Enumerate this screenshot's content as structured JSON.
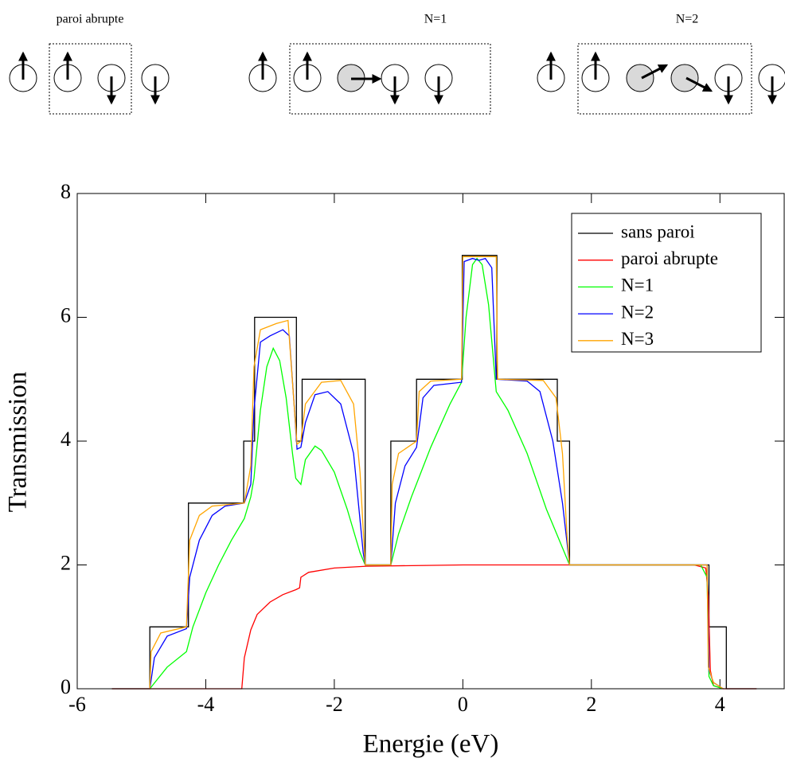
{
  "diagram": {
    "labels": [
      "paroi abrupte",
      "N=1",
      "N=2"
    ]
  },
  "chart_data": {
    "type": "line",
    "xlabel": "Energie (eV)",
    "ylabel": "Transmission",
    "xlim": [
      -6,
      5
    ],
    "ylim": [
      0,
      8
    ],
    "xticks": [
      -6,
      -4,
      -2,
      0,
      2,
      4
    ],
    "yticks": [
      0,
      2,
      4,
      6,
      8
    ],
    "legend": "upper right",
    "series": [
      {
        "name": "sans paroi",
        "color": "#000000",
        "x": [
          -5.46,
          -4.87,
          -4.87,
          -4.27,
          -4.27,
          -3.41,
          -3.41,
          -3.24,
          -3.24,
          -2.59,
          -2.59,
          -2.5,
          -2.5,
          -1.52,
          -1.52,
          -1.12,
          -1.12,
          -0.72,
          -0.72,
          -0.01,
          -0.01,
          0.53,
          0.53,
          1.47,
          1.47,
          1.66,
          1.66,
          3.83,
          3.83,
          4.1,
          4.1,
          4.57
        ],
        "values": [
          0,
          0,
          1,
          1,
          3,
          3,
          4,
          4,
          6,
          6,
          4,
          4,
          5,
          5,
          2,
          2,
          4,
          4,
          5,
          5,
          7,
          7,
          5,
          5,
          4,
          4,
          2,
          2,
          1,
          1,
          0,
          0
        ]
      },
      {
        "name": "paroi abrupte",
        "color": "#ff0000",
        "x": [
          -5.46,
          -3.44,
          -3.4,
          -3.3,
          -3.2,
          -3.0,
          -2.8,
          -2.6,
          -2.54,
          -2.52,
          -2.4,
          -2.0,
          -1.5,
          0,
          3.6,
          3.78,
          3.82,
          3.85,
          3.9,
          4.05,
          4.57
        ],
        "values": [
          0,
          0,
          0.5,
          0.95,
          1.2,
          1.4,
          1.52,
          1.6,
          1.63,
          1.8,
          1.88,
          1.95,
          1.98,
          2.0,
          2.0,
          1.95,
          1.5,
          0.3,
          0.05,
          0,
          0
        ]
      },
      {
        "name": "N=1",
        "color": "#00ff00",
        "x": [
          -4.87,
          -4.6,
          -4.3,
          -4.2,
          -4.0,
          -3.8,
          -3.6,
          -3.4,
          -3.3,
          -3.25,
          -3.15,
          -3.05,
          -2.95,
          -2.85,
          -2.75,
          -2.65,
          -2.6,
          -2.52,
          -2.45,
          -2.3,
          -2.2,
          -2.0,
          -1.8,
          -1.6,
          -1.52,
          -1.12,
          -1.0,
          -0.8,
          -0.5,
          -0.2,
          -0.02,
          0.05,
          0.15,
          0.22,
          0.3,
          0.4,
          0.52,
          0.7,
          1.0,
          1.3,
          1.5,
          1.66,
          3.7,
          3.8,
          3.83,
          3.9,
          4.05
        ],
        "values": [
          0,
          0.35,
          0.6,
          1.0,
          1.55,
          2.0,
          2.4,
          2.75,
          3.1,
          3.4,
          4.5,
          5.2,
          5.5,
          5.3,
          4.7,
          3.8,
          3.4,
          3.3,
          3.7,
          3.92,
          3.85,
          3.5,
          2.9,
          2.2,
          2.0,
          2.0,
          2.5,
          3.1,
          3.9,
          4.6,
          4.95,
          6.0,
          6.85,
          6.95,
          6.85,
          6.2,
          4.8,
          4.5,
          3.8,
          2.9,
          2.4,
          2.0,
          2.0,
          1.8,
          0.2,
          0.05,
          0
        ]
      },
      {
        "name": "N=2",
        "color": "#0000ff",
        "x": [
          -4.87,
          -4.8,
          -4.6,
          -4.3,
          -4.25,
          -4.1,
          -3.9,
          -3.7,
          -3.4,
          -3.3,
          -3.25,
          -3.15,
          -3.0,
          -2.8,
          -2.7,
          -2.62,
          -2.58,
          -2.52,
          -2.45,
          -2.3,
          -2.1,
          -1.9,
          -1.7,
          -1.55,
          -1.52,
          -1.12,
          -1.05,
          -0.9,
          -0.72,
          -0.62,
          -0.45,
          -0.02,
          0.02,
          0.15,
          0.25,
          0.35,
          0.45,
          0.52,
          1.0,
          1.2,
          1.4,
          1.55,
          1.66,
          3.8,
          3.83,
          3.9,
          4.05
        ],
        "values": [
          0,
          0.5,
          0.85,
          0.97,
          1.8,
          2.4,
          2.8,
          2.95,
          3.0,
          3.3,
          4.5,
          5.6,
          5.7,
          5.8,
          5.7,
          4.5,
          3.87,
          3.9,
          4.3,
          4.75,
          4.8,
          4.6,
          3.8,
          2.2,
          2.0,
          2.0,
          3.0,
          3.6,
          3.9,
          4.7,
          4.9,
          4.95,
          6.9,
          6.95,
          6.92,
          6.95,
          6.8,
          5.0,
          4.97,
          4.8,
          4.0,
          3.0,
          2.0,
          2.0,
          0.3,
          0.1,
          0
        ]
      },
      {
        "name": "N=3",
        "color": "#ffa500",
        "x": [
          -4.87,
          -4.85,
          -4.7,
          -4.3,
          -4.25,
          -4.1,
          -3.9,
          -3.4,
          -3.3,
          -3.25,
          -3.15,
          -2.9,
          -2.72,
          -2.62,
          -2.58,
          -2.52,
          -2.45,
          -2.2,
          -1.9,
          -1.7,
          -1.6,
          -1.52,
          -1.12,
          -1.1,
          -1.0,
          -0.72,
          -0.68,
          -0.5,
          -0.02,
          0.0,
          0.52,
          0.54,
          1.25,
          1.45,
          1.55,
          1.62,
          1.66,
          3.8,
          3.82,
          3.9,
          4.05
        ],
        "values": [
          0,
          0.6,
          0.9,
          1.0,
          2.4,
          2.8,
          2.95,
          3.0,
          3.6,
          5.2,
          5.8,
          5.9,
          5.95,
          4.5,
          3.95,
          4.0,
          4.6,
          4.95,
          4.98,
          4.6,
          3.5,
          2.0,
          2.0,
          3.3,
          3.8,
          4.0,
          4.8,
          4.97,
          5.0,
          6.98,
          6.98,
          5.0,
          4.98,
          4.7,
          3.8,
          2.5,
          2.0,
          2.0,
          0.35,
          0.1,
          0
        ]
      }
    ]
  }
}
